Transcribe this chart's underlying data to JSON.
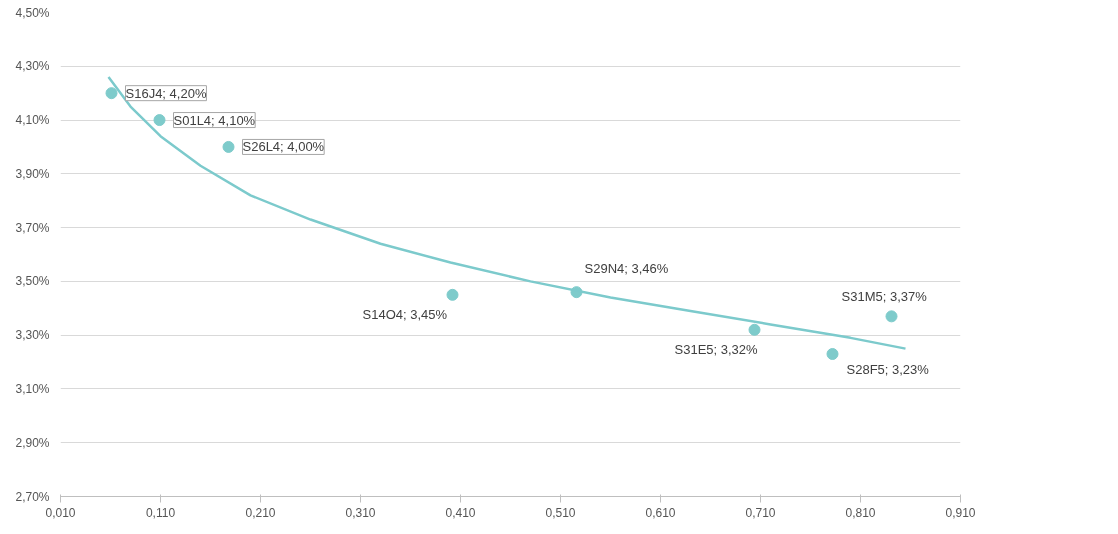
{
  "chart_data": {
    "type": "scatter",
    "grid": "y",
    "xlim": [
      0.01,
      0.91
    ],
    "ylim": [
      2.7,
      4.5
    ],
    "xticks": [
      {
        "value": 0.01,
        "label": "0,010"
      },
      {
        "value": 0.11,
        "label": "0,110"
      },
      {
        "value": 0.21,
        "label": "0,210"
      },
      {
        "value": 0.31,
        "label": "0,310"
      },
      {
        "value": 0.41,
        "label": "0,410"
      },
      {
        "value": 0.51,
        "label": "0,510"
      },
      {
        "value": 0.61,
        "label": "0,610"
      },
      {
        "value": 0.71,
        "label": "0,710"
      },
      {
        "value": 0.81,
        "label": "0,810"
      },
      {
        "value": 0.91,
        "label": "0,910"
      }
    ],
    "yticks": [
      {
        "value": 2.7,
        "label": "2,70%"
      },
      {
        "value": 2.9,
        "label": "2,90%"
      },
      {
        "value": 3.1,
        "label": "3,10%"
      },
      {
        "value": 3.3,
        "label": "3,30%"
      },
      {
        "value": 3.5,
        "label": "3,50%"
      },
      {
        "value": 3.7,
        "label": "3,70%"
      },
      {
        "value": 3.9,
        "label": "3,90%"
      },
      {
        "value": 4.1,
        "label": "4,10%"
      },
      {
        "value": 4.3,
        "label": "4,30%"
      },
      {
        "value": 4.5,
        "label": "4,50%"
      }
    ],
    "series": [
      {
        "marker": "circle",
        "color": "#7ecbcb",
        "x": [
          0.061,
          0.109,
          0.178,
          0.402,
          0.526,
          0.704,
          0.782,
          0.841
        ],
        "values": [
          4.2,
          4.1,
          4.0,
          3.45,
          3.46,
          3.32,
          3.23,
          3.37
        ],
        "value_labels": [
          "S16J4; 4,20%",
          "S01L4; 4,10%",
          "S26L4; 4,00%",
          "S14O4; 3,45%",
          "S29N4; 3,46%",
          "S31E5; 3,32%",
          "S28F5; 3,23%",
          "S31M5; 3,37%"
        ]
      },
      {
        "type": "line",
        "marker": "none",
        "color": "#7ccacc",
        "x": [
          0.058,
          0.08,
          0.11,
          0.15,
          0.2,
          0.26,
          0.33,
          0.4,
          0.48,
          0.56,
          0.64,
          0.72,
          0.8,
          0.855
        ],
        "values": [
          4.26,
          4.15,
          4.04,
          3.93,
          3.82,
          3.73,
          3.64,
          3.57,
          3.5,
          3.44,
          3.39,
          3.34,
          3.29,
          3.25
        ]
      }
    ]
  }
}
